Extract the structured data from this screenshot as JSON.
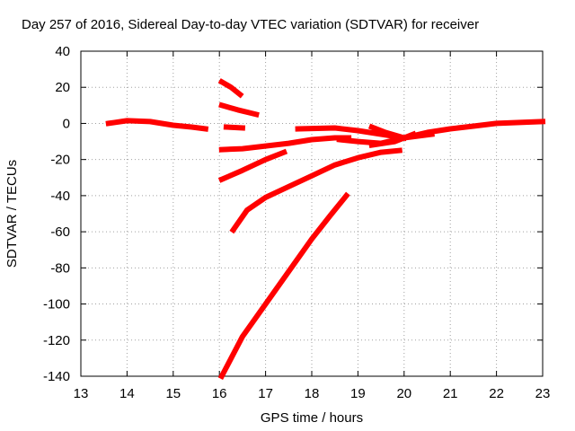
{
  "chart_data": {
    "type": "line",
    "title": "Day 257 of 2016, Sidereal Day-to-day VTEC variation (SDTVAR) for receiver",
    "xlabel": "GPS time / hours",
    "ylabel": "SDTVAR / TECUs",
    "xlim": [
      13,
      23
    ],
    "ylim": [
      -140,
      40
    ],
    "xticks": [
      13,
      14,
      15,
      16,
      17,
      18,
      19,
      20,
      21,
      22,
      23
    ],
    "yticks": [
      -140,
      -120,
      -100,
      -80,
      -60,
      -40,
      -20,
      0,
      20,
      40
    ],
    "grid": true,
    "legend": "none",
    "color": "#ff0000",
    "series": [
      {
        "x": [
          13.6,
          14.0,
          14.5,
          15.0,
          15.4,
          15.7
        ],
        "y": [
          0,
          1.5,
          1,
          -1,
          -2,
          -3
        ]
      },
      {
        "x": [
          16.05,
          16.25,
          16.45
        ],
        "y": [
          23,
          20,
          16
        ]
      },
      {
        "x": [
          16.05,
          16.4,
          16.8
        ],
        "y": [
          10,
          7.5,
          5
        ]
      },
      {
        "x": [
          16.15,
          16.5
        ],
        "y": [
          -2,
          -2.5
        ]
      },
      {
        "x": [
          16.05,
          16.5,
          17.0,
          17.5,
          18.0,
          18.5,
          18.8
        ],
        "y": [
          -14.5,
          -14,
          -12.5,
          -11,
          -9,
          -8,
          -8
        ]
      },
      {
        "x": [
          16.05,
          16.5,
          17.0,
          17.4
        ],
        "y": [
          -31,
          -26,
          -20,
          -16
        ]
      },
      {
        "x": [
          16.3,
          16.6,
          17.0,
          17.5,
          18.0,
          18.5,
          19.0,
          19.5,
          19.9
        ],
        "y": [
          -59,
          -48,
          -41,
          -35,
          -29,
          -23,
          -19,
          -16,
          -15
        ]
      },
      {
        "x": [
          16.05,
          16.5,
          17.0,
          17.5,
          18.0,
          18.4,
          18.75
        ],
        "y": [
          -140,
          -118,
          -100,
          -82,
          -64,
          -51,
          -40
        ]
      },
      {
        "x": [
          17.7,
          18.5,
          19.0,
          19.5,
          20.0,
          20.6
        ],
        "y": [
          -3,
          -2.5,
          -4,
          -6,
          -8,
          -6
        ]
      },
      {
        "x": [
          18.6,
          19.0,
          19.5,
          20.0,
          20.5,
          21.0,
          21.5,
          22.0,
          22.5,
          23.0
        ],
        "y": [
          -9,
          -10,
          -11,
          -8,
          -5,
          -3,
          -1.5,
          0,
          0.5,
          1
        ]
      },
      {
        "x": [
          19.3,
          19.6,
          20.0
        ],
        "y": [
          -2,
          -5,
          -8
        ]
      },
      {
        "x": [
          19.3,
          19.8,
          20.2
        ],
        "y": [
          -12,
          -10,
          -6
        ]
      }
    ]
  }
}
